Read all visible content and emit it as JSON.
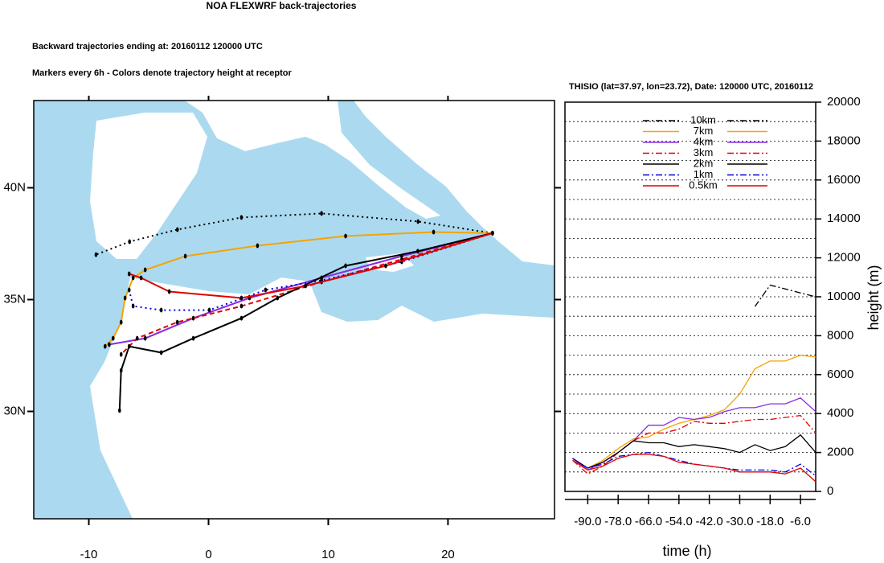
{
  "chart_data": [
    {
      "type": "trajectory",
      "title": "NOA FLEXWRF back-trajectories",
      "subtitles": [
        "Backward trajectories ending at: 20160112  120000 UTC",
        "Markers every 6h - Colors denote trajectory height at receptor"
      ],
      "xlim": [
        -14.6,
        28.9
      ],
      "ylim": [
        25.2,
        43.9
      ],
      "xticks": [
        -10,
        0,
        10,
        20
      ],
      "yticks": [
        {
          "value": 30,
          "label": "30N"
        },
        {
          "value": 35,
          "label": "35N"
        },
        {
          "value": 40,
          "label": "40N"
        }
      ],
      "series": [
        {
          "color": "#000000",
          "dash": "dotted",
          "x": [
            23.72,
            17.5,
            9.44,
            2.75,
            -2.6,
            -6.6,
            -9.4
          ],
          "values": [
            37.97,
            38.49,
            38.85,
            38.67,
            38.13,
            37.59,
            37.01
          ]
        },
        {
          "color": "#f5a300",
          "dash": "solid",
          "x": [
            23.72,
            18.8,
            11.45,
            4.09,
            -1.94,
            -5.29,
            -6.3,
            -6.97,
            -7.3,
            -7.97,
            -8.64
          ],
          "values": [
            37.97,
            38.02,
            37.84,
            37.41,
            36.94,
            36.33,
            35.97,
            35.07,
            33.99,
            33.27,
            32.91
          ]
        },
        {
          "color": "#8a2be2",
          "dash": "solid",
          "x": [
            23.72,
            16.14,
            9.44,
            3.42,
            -1.27,
            -5.29,
            -8.3
          ],
          "values": [
            37.97,
            36.94,
            35.97,
            35.07,
            34.17,
            33.27,
            32.99
          ]
        },
        {
          "color": "#e00000",
          "dash": "dashed",
          "x": [
            23.72,
            16.14,
            9.44,
            2.75,
            -2.61,
            -5.96,
            -7.3
          ],
          "values": [
            37.97,
            36.8,
            35.79,
            34.71,
            33.99,
            33.27,
            32.55
          ]
        },
        {
          "color": "#000000",
          "dash": "solid",
          "x": [
            23.72,
            17.48,
            11.45,
            5.76,
            2.75,
            -1.27,
            -3.95,
            -6.63,
            -7.3,
            -7.43
          ],
          "values": [
            37.97,
            37.16,
            36.51,
            35.07,
            34.17,
            33.27,
            32.63,
            32.91,
            31.83,
            30.04
          ]
        },
        {
          "color": "#0000e0",
          "dash": "dotted",
          "x": [
            23.72,
            16.14,
            9.44,
            4.76,
            0.07,
            -3.95,
            -6.3,
            -6.63
          ],
          "values": [
            37.97,
            36.69,
            35.86,
            35.43,
            34.53,
            34.53,
            34.71,
            35.43
          ]
        },
        {
          "color": "#e00000",
          "dash": "solid",
          "x": [
            23.72,
            14.8,
            8.1,
            2.75,
            -3.28,
            -5.63,
            -6.63
          ],
          "values": [
            37.97,
            36.51,
            35.61,
            35.07,
            35.36,
            35.97,
            36.15
          ]
        }
      ]
    },
    {
      "type": "line",
      "title": "THISIO (lat=37.97,  lon=23.72), Date: 120000 UTC, 20160112",
      "xlabel": "time (h)",
      "ylabel": "height (m)",
      "xlim": [
        -99,
        0
      ],
      "ylim": [
        0,
        20000
      ],
      "xticks": [
        {
          "value": -90,
          "label": "-90.0"
        },
        {
          "value": -78,
          "label": "-78.0"
        },
        {
          "value": -66,
          "label": "-66.0"
        },
        {
          "value": -54,
          "label": "-54.0"
        },
        {
          "value": -42,
          "label": "-42.0"
        },
        {
          "value": -30,
          "label": "-30.0"
        },
        {
          "value": -18,
          "label": "-18.0"
        },
        {
          "value": -6,
          "label": "-6.0"
        }
      ],
      "yticks": [
        0,
        2000,
        4000,
        6000,
        8000,
        10000,
        12000,
        14000,
        16000,
        18000,
        20000
      ],
      "yminor": [
        1000,
        3000,
        5000,
        7000,
        9000,
        11000,
        13000,
        15000,
        17000,
        19000
      ],
      "grid": true,
      "x": [
        -96,
        -90,
        -84,
        -78,
        -72,
        -66,
        -60,
        -54,
        -48,
        -42,
        -36,
        -30,
        -24,
        -18,
        -12,
        -6,
        0
      ],
      "series": [
        {
          "name": "10km",
          "color": "#000000",
          "dash": "dashdot",
          "values": [
            null,
            null,
            null,
            null,
            null,
            null,
            null,
            null,
            null,
            null,
            null,
            null,
            9500,
            10600,
            10400,
            10200,
            10000
          ]
        },
        {
          "name": "7km",
          "color": "#f5a300",
          "dash": "solid",
          "values": [
            1700,
            1200,
            1600,
            2200,
            2700,
            2800,
            3200,
            3500,
            3700,
            3900,
            4200,
            5000,
            6300,
            6700,
            6700,
            7000,
            6900
          ]
        },
        {
          "name": "4km",
          "color": "#8a2be2",
          "dash": "solid",
          "values": [
            1700,
            1100,
            1500,
            2000,
            2600,
            3400,
            3400,
            3800,
            3700,
            3800,
            4100,
            4300,
            4300,
            4500,
            4500,
            4800,
            4100
          ]
        },
        {
          "name": "3km",
          "color": "#e00000",
          "dash": "dashdot",
          "values": [
            1600,
            900,
            1300,
            2000,
            2600,
            3000,
            3000,
            3200,
            3600,
            3500,
            3500,
            3600,
            3700,
            3700,
            3800,
            3900,
            3000
          ]
        },
        {
          "name": "2km",
          "color": "#000000",
          "dash": "solid",
          "values": [
            1700,
            1200,
            1500,
            2000,
            2600,
            2500,
            2500,
            2300,
            2400,
            2300,
            2200,
            2000,
            2400,
            2100,
            2300,
            2900,
            2000
          ]
        },
        {
          "name": "1km",
          "color": "#0000e0",
          "dash": "dashdot",
          "values": [
            1700,
            1200,
            1400,
            1800,
            1900,
            2000,
            1800,
            1600,
            1400,
            1300,
            1200,
            1100,
            1100,
            1100,
            1000,
            1400,
            800
          ]
        },
        {
          "name": "0.5km",
          "color": "#e00000",
          "dash": "solid",
          "values": [
            1600,
            1100,
            1300,
            1700,
            1900,
            1900,
            1800,
            1500,
            1400,
            1300,
            1200,
            1000,
            1000,
            1000,
            900,
            1200,
            500
          ]
        }
      ]
    }
  ]
}
